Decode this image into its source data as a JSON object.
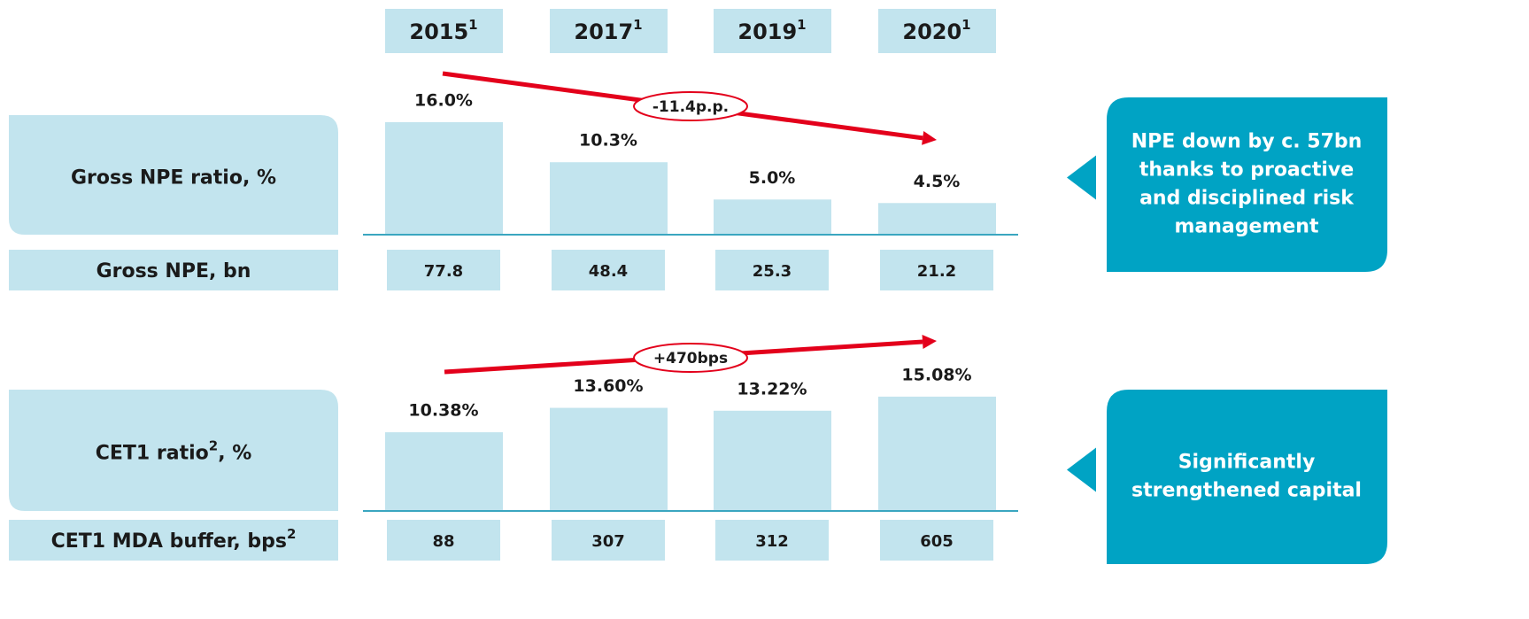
{
  "chart_data": [
    {
      "type": "bar",
      "categories": [
        "2015",
        "2017",
        "2019",
        "2020"
      ],
      "category_note": "1",
      "label": "Gross NPE ratio, %",
      "values": [
        16.0,
        10.3,
        5.0,
        4.5
      ],
      "value_labels": [
        "16.0%",
        "10.3%",
        "5.0%",
        "4.5%"
      ],
      "color": "#c2e4ee",
      "ylim": [
        0,
        17
      ],
      "annotation": "-11.4p.p.",
      "callout": [
        "NPE down by c. 57bn",
        "thanks to proactive",
        "and disciplined risk",
        "management"
      ],
      "secondary": {
        "label": "Gross NPE, bn",
        "values": [
          77.8,
          48.4,
          25.3,
          21.2
        ]
      }
    },
    {
      "type": "bar",
      "label": "CET1 ratio",
      "label_note": "2",
      "label_suffix": ", %",
      "values": [
        10.38,
        13.6,
        13.22,
        15.08
      ],
      "value_labels": [
        "10.38%",
        "13.60%",
        "13.22%",
        "15.08%"
      ],
      "color": "#c2e4ee",
      "ylim": [
        0,
        16
      ],
      "annotation": "+470bps",
      "callout": [
        "Significantly",
        "strengthened capital"
      ],
      "secondary": {
        "label": "CET1 MDA buffer, bps",
        "label_note": "2",
        "values": [
          88,
          307,
          312,
          605
        ]
      }
    }
  ]
}
